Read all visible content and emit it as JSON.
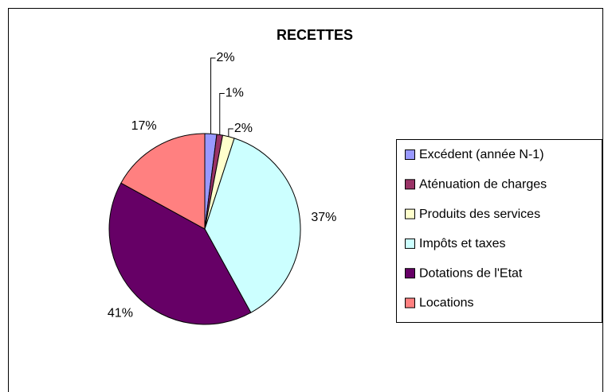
{
  "chart_data": {
    "type": "pie",
    "title": "RECETTES",
    "categories": [
      "Excédent (année N-1)",
      "Aténuation de charges",
      "Produits des services",
      "Impôts et taxes",
      "Dotations de l'Etat",
      "Locations"
    ],
    "values": [
      2,
      1,
      2,
      37,
      41,
      17
    ],
    "value_labels": [
      "2%",
      "1%",
      "2%",
      "37%",
      "41%",
      "17%"
    ],
    "colors": [
      "#9999ff",
      "#993366",
      "#ffffcc",
      "#ccffff",
      "#660066",
      "#ff8080"
    ],
    "legend": "right"
  }
}
